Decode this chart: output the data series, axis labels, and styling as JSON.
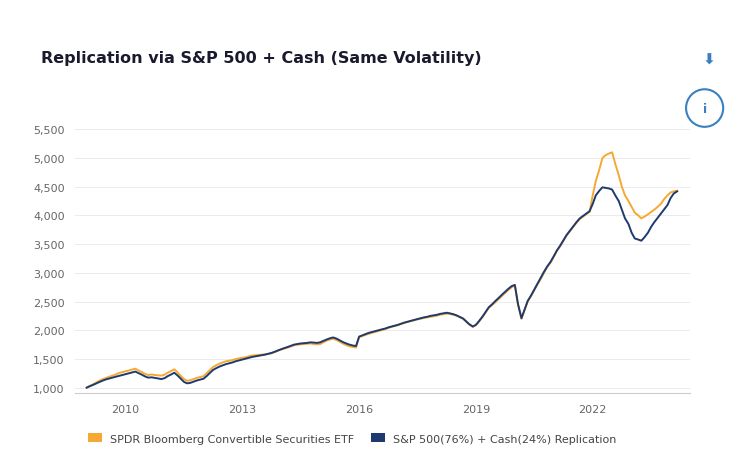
{
  "title": "Replication via S&P 500 + Cash (Same Volatility)",
  "legend_label_1": "SPDR Bloomberg Convertible Securities ETF",
  "legend_label_2": "S&P 500(76%) + Cash(24%) Replication",
  "color_1": "#F5A932",
  "color_2": "#1E3A6E",
  "background_color": "#FFFFFF",
  "card_bg": "#FAFAFA",
  "ylim": [
    900,
    5750
  ],
  "yticks": [
    1000,
    1500,
    2000,
    2500,
    3000,
    3500,
    4000,
    4500,
    5000,
    5500
  ],
  "xlim_start": 2008.7,
  "xlim_end": 2024.5,
  "xticks_years": [
    2010,
    2013,
    2016,
    2019,
    2022
  ],
  "years_data": [
    2009.0,
    2009.08,
    2009.17,
    2009.25,
    2009.33,
    2009.42,
    2009.5,
    2009.58,
    2009.67,
    2009.75,
    2009.83,
    2009.92,
    2010.0,
    2010.08,
    2010.17,
    2010.25,
    2010.33,
    2010.42,
    2010.5,
    2010.58,
    2010.67,
    2010.75,
    2010.83,
    2010.92,
    2011.0,
    2011.08,
    2011.17,
    2011.25,
    2011.33,
    2011.42,
    2011.5,
    2011.58,
    2011.67,
    2011.75,
    2011.83,
    2011.92,
    2012.0,
    2012.08,
    2012.17,
    2012.25,
    2012.33,
    2012.42,
    2012.5,
    2012.58,
    2012.67,
    2012.75,
    2012.83,
    2012.92,
    2013.0,
    2013.08,
    2013.17,
    2013.25,
    2013.33,
    2013.42,
    2013.5,
    2013.58,
    2013.67,
    2013.75,
    2013.83,
    2013.92,
    2014.0,
    2014.08,
    2014.17,
    2014.25,
    2014.33,
    2014.42,
    2014.5,
    2014.58,
    2014.67,
    2014.75,
    2014.83,
    2014.92,
    2015.0,
    2015.08,
    2015.17,
    2015.25,
    2015.33,
    2015.42,
    2015.5,
    2015.58,
    2015.67,
    2015.75,
    2015.83,
    2015.92,
    2016.0,
    2016.08,
    2016.17,
    2016.25,
    2016.33,
    2016.42,
    2016.5,
    2016.58,
    2016.67,
    2016.75,
    2016.83,
    2016.92,
    2017.0,
    2017.08,
    2017.17,
    2017.25,
    2017.33,
    2017.42,
    2017.5,
    2017.58,
    2017.67,
    2017.75,
    2017.83,
    2017.92,
    2018.0,
    2018.08,
    2018.17,
    2018.25,
    2018.33,
    2018.42,
    2018.5,
    2018.58,
    2018.67,
    2018.75,
    2018.83,
    2018.92,
    2019.0,
    2019.08,
    2019.17,
    2019.25,
    2019.33,
    2019.42,
    2019.5,
    2019.58,
    2019.67,
    2019.75,
    2019.83,
    2019.92,
    2020.0,
    2020.08,
    2020.17,
    2020.25,
    2020.33,
    2020.42,
    2020.5,
    2020.58,
    2020.67,
    2020.75,
    2020.83,
    2020.92,
    2021.0,
    2021.08,
    2021.17,
    2021.25,
    2021.33,
    2021.42,
    2021.5,
    2021.58,
    2021.67,
    2021.75,
    2021.83,
    2021.92,
    2022.0,
    2022.08,
    2022.17,
    2022.25,
    2022.33,
    2022.42,
    2022.5,
    2022.58,
    2022.67,
    2022.75,
    2022.83,
    2022.92,
    2023.0,
    2023.08,
    2023.17,
    2023.25,
    2023.33,
    2023.42,
    2023.5,
    2023.58,
    2023.67,
    2023.75,
    2023.83,
    2023.92,
    2024.0,
    2024.08,
    2024.17
  ],
  "orange_values": [
    1000,
    1030,
    1060,
    1090,
    1120,
    1150,
    1170,
    1190,
    1210,
    1230,
    1255,
    1270,
    1285,
    1300,
    1315,
    1330,
    1300,
    1270,
    1240,
    1220,
    1230,
    1220,
    1215,
    1210,
    1225,
    1260,
    1290,
    1320,
    1270,
    1200,
    1150,
    1120,
    1130,
    1150,
    1170,
    1185,
    1200,
    1250,
    1310,
    1360,
    1390,
    1420,
    1440,
    1460,
    1470,
    1480,
    1500,
    1510,
    1520,
    1530,
    1545,
    1560,
    1565,
    1570,
    1575,
    1580,
    1590,
    1600,
    1620,
    1645,
    1665,
    1680,
    1700,
    1720,
    1740,
    1750,
    1755,
    1760,
    1765,
    1770,
    1760,
    1755,
    1760,
    1790,
    1820,
    1840,
    1850,
    1830,
    1800,
    1770,
    1740,
    1720,
    1710,
    1700,
    1880,
    1900,
    1920,
    1940,
    1955,
    1970,
    1985,
    2000,
    2020,
    2040,
    2060,
    2075,
    2090,
    2110,
    2130,
    2145,
    2160,
    2175,
    2190,
    2200,
    2215,
    2225,
    2235,
    2245,
    2255,
    2270,
    2280,
    2290,
    2285,
    2270,
    2255,
    2230,
    2200,
    2150,
    2100,
    2060,
    2090,
    2150,
    2230,
    2310,
    2390,
    2440,
    2490,
    2540,
    2600,
    2650,
    2700,
    2750,
    2780,
    2450,
    2200,
    2350,
    2500,
    2600,
    2700,
    2800,
    2900,
    3000,
    3100,
    3180,
    3280,
    3380,
    3470,
    3560,
    3650,
    3730,
    3800,
    3870,
    3940,
    3980,
    4020,
    4060,
    4350,
    4600,
    4800,
    5000,
    5050,
    5080,
    5100,
    4900,
    4700,
    4500,
    4350,
    4250,
    4150,
    4050,
    4000,
    3950,
    3980,
    4020,
    4060,
    4100,
    4150,
    4200,
    4280,
    4350,
    4400,
    4420,
    4430
  ],
  "blue_values": [
    1000,
    1025,
    1050,
    1075,
    1100,
    1125,
    1145,
    1160,
    1175,
    1190,
    1205,
    1220,
    1235,
    1250,
    1265,
    1280,
    1255,
    1225,
    1195,
    1175,
    1180,
    1170,
    1160,
    1150,
    1165,
    1200,
    1230,
    1260,
    1215,
    1155,
    1100,
    1075,
    1085,
    1105,
    1125,
    1140,
    1155,
    1200,
    1260,
    1310,
    1340,
    1370,
    1390,
    1410,
    1425,
    1440,
    1460,
    1475,
    1490,
    1505,
    1520,
    1535,
    1545,
    1555,
    1565,
    1575,
    1590,
    1605,
    1625,
    1650,
    1670,
    1690,
    1710,
    1730,
    1750,
    1760,
    1770,
    1775,
    1780,
    1790,
    1785,
    1780,
    1790,
    1815,
    1840,
    1860,
    1875,
    1855,
    1825,
    1795,
    1770,
    1750,
    1735,
    1725,
    1890,
    1910,
    1935,
    1955,
    1970,
    1985,
    2000,
    2015,
    2030,
    2050,
    2065,
    2080,
    2095,
    2115,
    2135,
    2150,
    2165,
    2180,
    2195,
    2210,
    2225,
    2235,
    2250,
    2260,
    2270,
    2285,
    2295,
    2305,
    2295,
    2280,
    2260,
    2235,
    2205,
    2155,
    2105,
    2065,
    2095,
    2160,
    2240,
    2320,
    2400,
    2455,
    2510,
    2560,
    2620,
    2670,
    2720,
    2770,
    2790,
    2460,
    2210,
    2360,
    2510,
    2610,
    2710,
    2810,
    2920,
    3020,
    3110,
    3195,
    3290,
    3390,
    3480,
    3570,
    3660,
    3740,
    3810,
    3880,
    3950,
    3990,
    4030,
    4075,
    4200,
    4350,
    4430,
    4490,
    4480,
    4470,
    4450,
    4350,
    4250,
    4100,
    3950,
    3850,
    3700,
    3600,
    3580,
    3560,
    3620,
    3700,
    3800,
    3880,
    3960,
    4030,
    4100,
    4180,
    4300,
    4380,
    4420
  ]
}
